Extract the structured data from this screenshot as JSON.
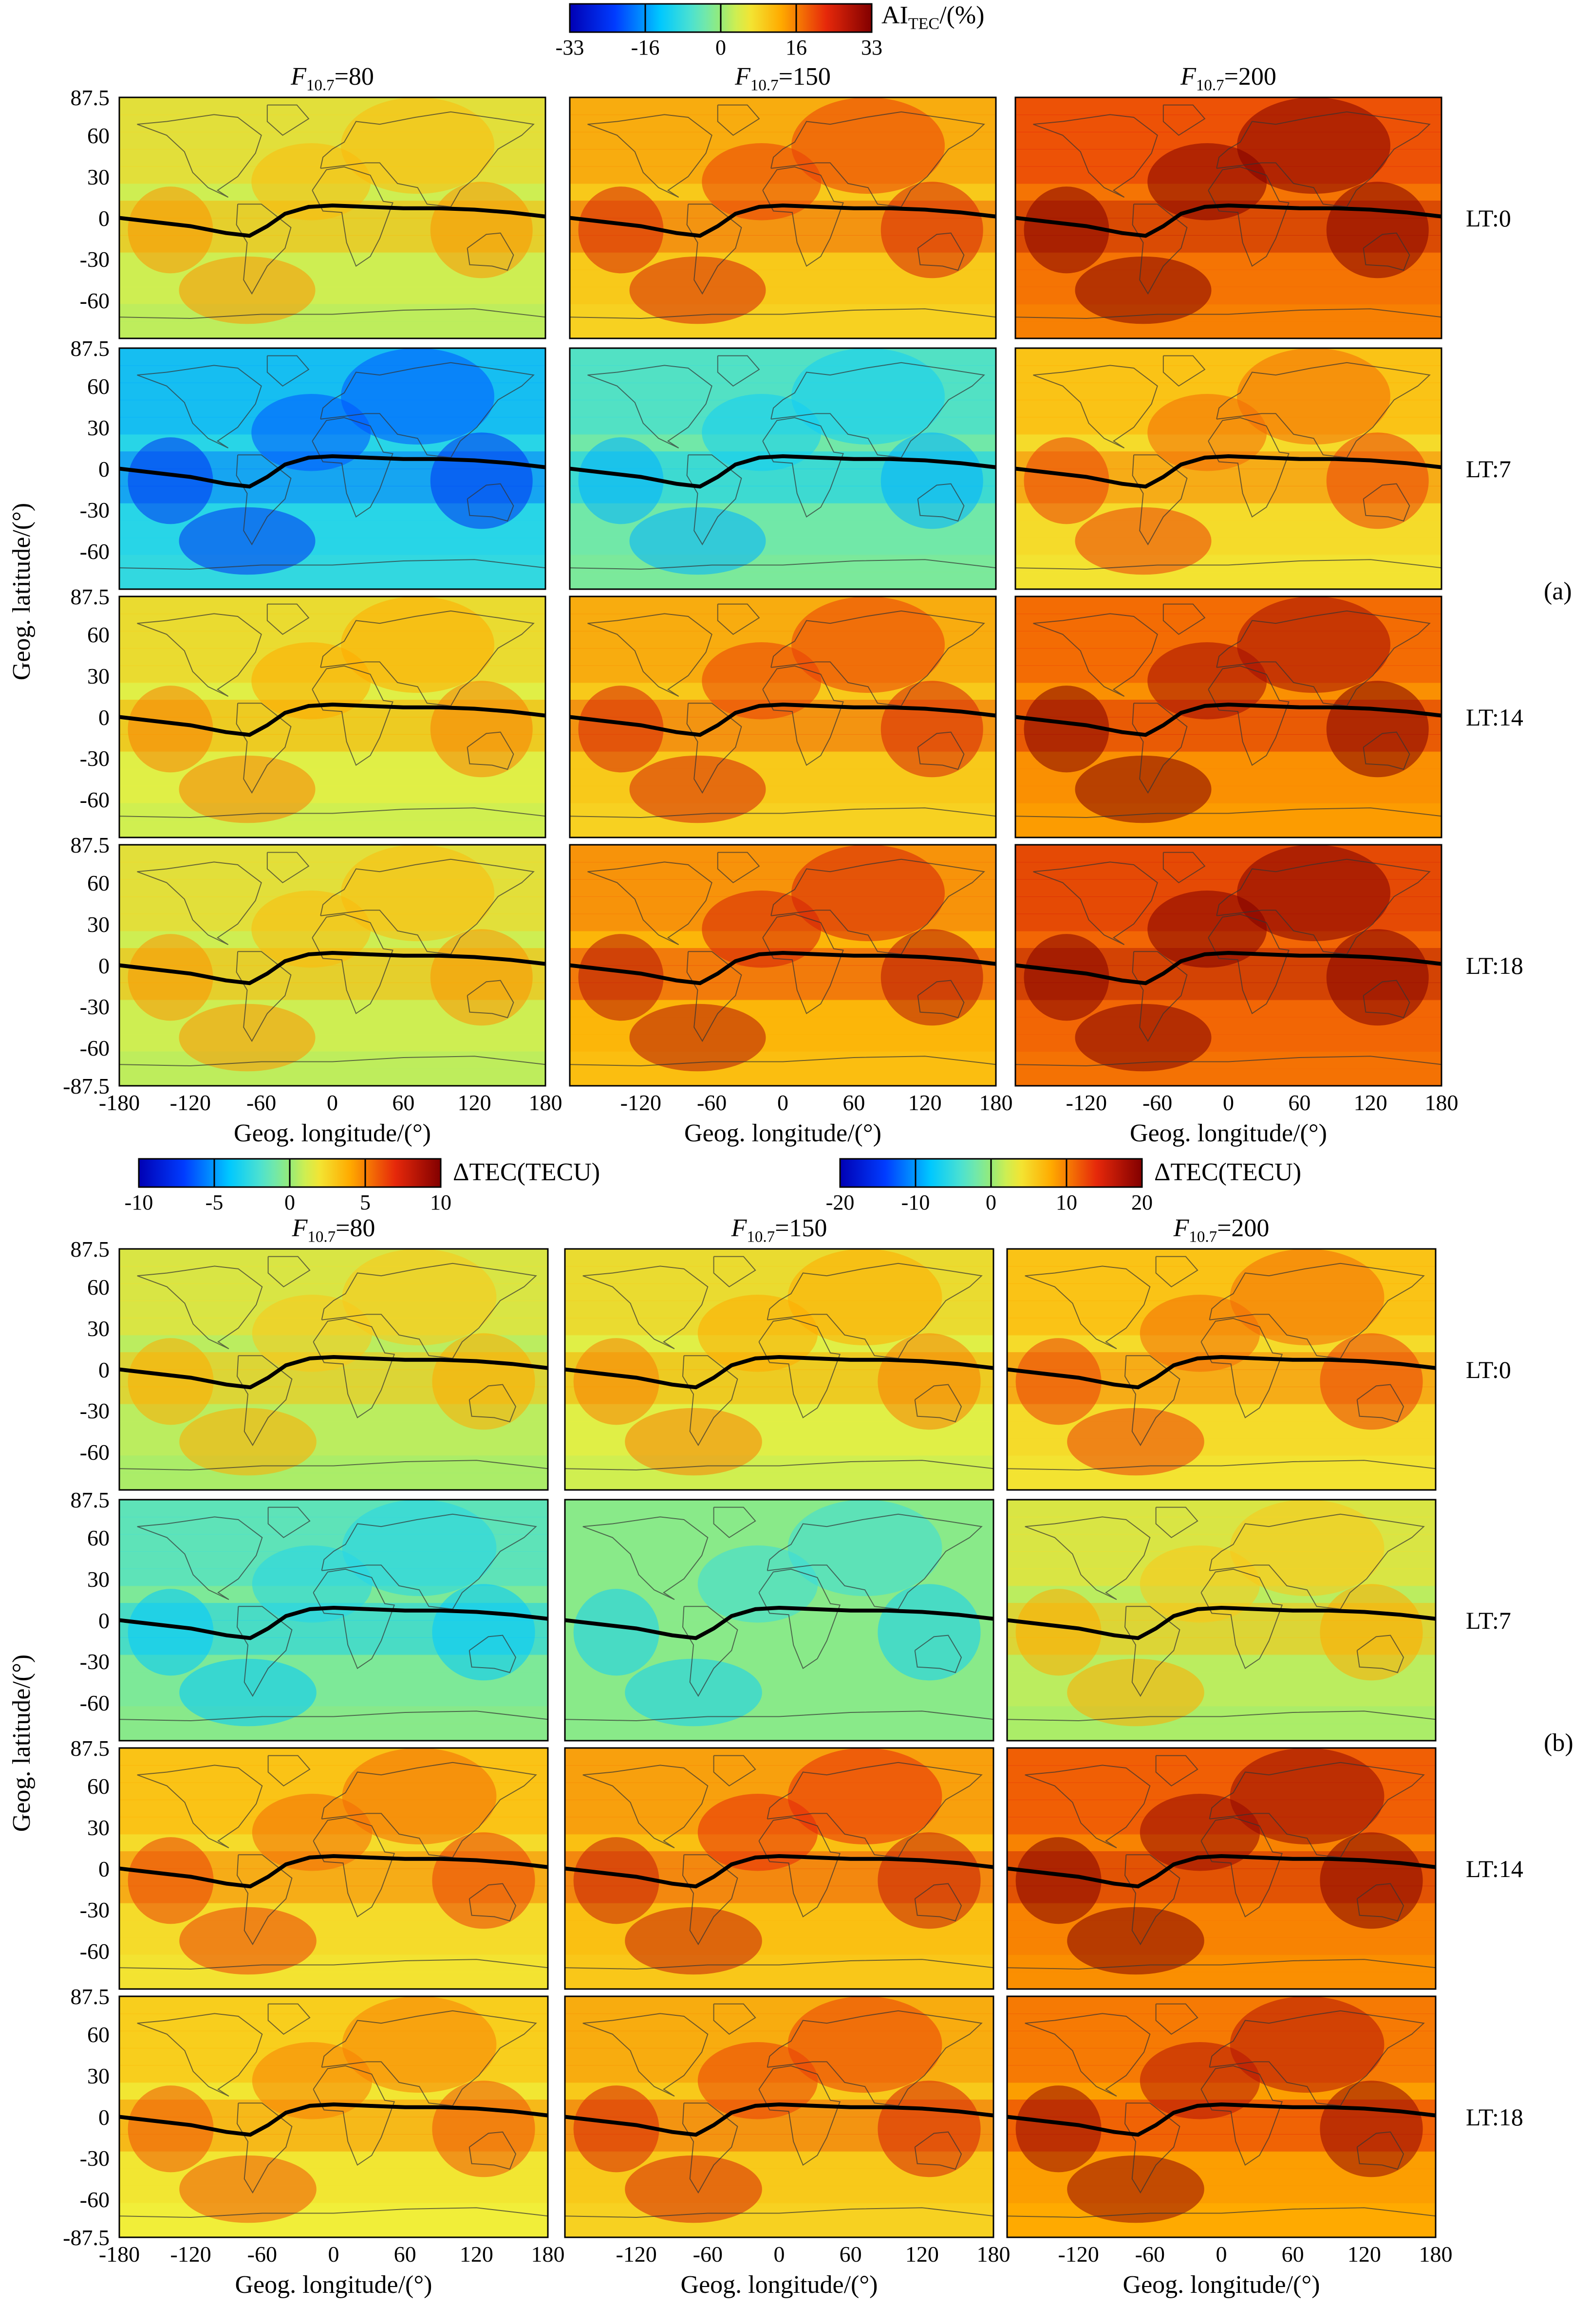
{
  "figure": {
    "part_a": {
      "tag": "(a)",
      "colorbar": {
        "label": "AI",
        "label_sub": "TEC",
        "label_suffix": "/(%)",
        "ticks": [
          "-33",
          "-16",
          "0",
          "16",
          "33"
        ],
        "range": [
          -33,
          33
        ]
      },
      "columns": [
        {
          "prefix": "F",
          "sub": "10.7",
          "suffix": "=80"
        },
        {
          "prefix": "F",
          "sub": "10.7",
          "suffix": "=150"
        },
        {
          "prefix": "F",
          "sub": "10.7",
          "suffix": "=200"
        }
      ],
      "rows": [
        "LT:0",
        "LT:7",
        "LT:14",
        "LT:18"
      ],
      "ylabel": "Geog. latitude/(°)",
      "xlabel": "Geog. longitude/(°)"
    },
    "part_b": {
      "tag": "(b)",
      "colorbar_left": {
        "label": "ΔTEC(TECU)",
        "ticks": [
          "-10",
          "-5",
          "0",
          "5",
          "10"
        ],
        "range": [
          -10,
          10
        ]
      },
      "colorbar_right": {
        "label": "ΔTEC(TECU)",
        "ticks": [
          "-20",
          "-10",
          "0",
          "10",
          "20"
        ],
        "range": [
          -20,
          20
        ]
      },
      "columns": [
        {
          "prefix": "F",
          "sub": "10.7",
          "suffix": "=80"
        },
        {
          "prefix": "F",
          "sub": "10.7",
          "suffix": "=150"
        },
        {
          "prefix": "F",
          "sub": "10.7",
          "suffix": "=200"
        }
      ],
      "rows": [
        "LT:0",
        "LT:7",
        "LT:14",
        "LT:18"
      ],
      "ylabel": "Geog. latitude/(°)",
      "xlabel": "Geog. longitude/(°)"
    },
    "lat_ticks": [
      "87.5",
      "60",
      "30",
      "0",
      "-30",
      "-60"
    ],
    "lat_ticks_bottom": [
      "87.5",
      "60",
      "30",
      "0",
      "-30",
      "-60",
      "-87.5"
    ],
    "lon_ticks_first": [
      "-180",
      "-120",
      "-60",
      "0",
      "60",
      "120",
      "180"
    ],
    "lon_ticks_other": [
      "-120",
      "-60",
      "0",
      "60",
      "120",
      "180"
    ]
  },
  "chart_data": {
    "type": "heatmap",
    "description_fields": {
      "x_axis": "longitude",
      "y_axis": "latitude"
    },
    "x_range": [
      -180,
      180
    ],
    "y_range": [
      -87.5,
      87.5
    ],
    "panels_a": [
      {
        "row": "LT:0",
        "col": "F10.7=80",
        "level": 0.15
      },
      {
        "row": "LT:0",
        "col": "F10.7=150",
        "level": 0.45
      },
      {
        "row": "LT:0",
        "col": "F10.7=200",
        "level": 0.8
      },
      {
        "row": "LT:7",
        "col": "F10.7=80",
        "level": -0.45
      },
      {
        "row": "LT:7",
        "col": "F10.7=150",
        "level": -0.15
      },
      {
        "row": "LT:7",
        "col": "F10.7=200",
        "level": 0.35
      },
      {
        "row": "LT:14",
        "col": "F10.7=80",
        "level": 0.2
      },
      {
        "row": "LT:14",
        "col": "F10.7=150",
        "level": 0.45
      },
      {
        "row": "LT:14",
        "col": "F10.7=200",
        "level": 0.7
      },
      {
        "row": "LT:18",
        "col": "F10.7=80",
        "level": 0.15
      },
      {
        "row": "LT:18",
        "col": "F10.7=150",
        "level": 0.55
      },
      {
        "row": "LT:18",
        "col": "F10.7=200",
        "level": 0.85
      }
    ],
    "panels_b": [
      {
        "row": "LT:0",
        "col": "F10.7=80",
        "level": 0.1
      },
      {
        "row": "LT:0",
        "col": "F10.7=150",
        "level": 0.2
      },
      {
        "row": "LT:0",
        "col": "F10.7=200",
        "level": 0.35
      },
      {
        "row": "LT:7",
        "col": "F10.7=80",
        "level": -0.1
      },
      {
        "row": "LT:7",
        "col": "F10.7=150",
        "level": -0.05
      },
      {
        "row": "LT:7",
        "col": "F10.7=200",
        "level": 0.1
      },
      {
        "row": "LT:14",
        "col": "F10.7=80",
        "level": 0.35
      },
      {
        "row": "LT:14",
        "col": "F10.7=150",
        "level": 0.5
      },
      {
        "row": "LT:14",
        "col": "F10.7=200",
        "level": 0.75
      },
      {
        "row": "LT:18",
        "col": "F10.7=80",
        "level": 0.3
      },
      {
        "row": "LT:18",
        "col": "F10.7=150",
        "level": 0.45
      },
      {
        "row": "LT:18",
        "col": "F10.7=200",
        "level": 0.65
      }
    ],
    "magnetic_equator": {
      "lon": [
        -180,
        -150,
        -120,
        -90,
        -70,
        -55,
        -40,
        -20,
        0,
        30,
        60,
        90,
        120,
        150,
        180
      ],
      "lat": [
        0,
        -3,
        -6,
        -11,
        -13,
        -6,
        3,
        8,
        9,
        8,
        7,
        7,
        6,
        4,
        1
      ]
    }
  }
}
